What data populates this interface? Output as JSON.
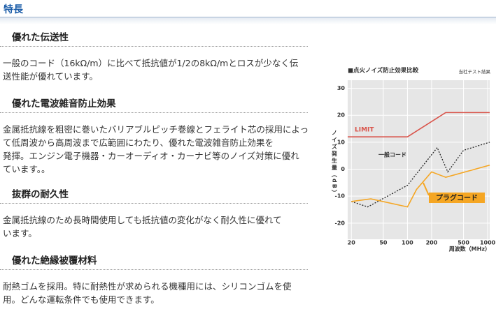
{
  "header": {
    "title": "特長"
  },
  "sections": [
    {
      "heading": "優れた伝送性",
      "lines": [
        "一般のコード（16kΩ/m）に比べて抵抗値が1/2の8kΩ/mとロスが少なく伝",
        "送性能が優れています。"
      ]
    },
    {
      "heading": "優れた電波雑音防止効果",
      "lines": [
        "金属抵抗線を粗密に巻いたバリアブルピッチ巻線とフェライト芯の採用によっ",
        "て低周波から高周波まで広範囲にわたり、優れた電波雑音防止効果を",
        "発揮。エンジン電子機器・カーオーディオ・カーナビ等のノイズ対策に優れ",
        "ています。。"
      ]
    },
    {
      "heading": "抜群の耐久性",
      "lines": [
        "金属抵抗線のため長時間使用しても抵抗値の変化がなく耐久性に優れて",
        "います。"
      ]
    },
    {
      "heading": "優れた絶縁被覆材料",
      "lines": [
        "耐熱ゴムを採用。特に耐熱性が求められる機種用には、シリコンゴムを使",
        "用。どんな運転条件でも使用できます。"
      ]
    }
  ],
  "chart_data": {
    "type": "line",
    "title": "■点火ノイズ防止効果比較",
    "note": "当社テスト結果",
    "ylabel": "ノイズ発生量（dB）",
    "xlabel": "周波数（MHz）",
    "xscale": "log",
    "grid": true,
    "xlim": [
      18,
      1060
    ],
    "xticks": [
      20,
      50,
      100,
      200,
      500,
      1000
    ],
    "ylim": [
      -26,
      33
    ],
    "yticks": [
      30,
      20,
      10,
      0,
      -10,
      -20
    ],
    "series": [
      {
        "name": "LIMIT",
        "color": "#d9534a",
        "x": [
          18,
          100,
          300,
          1060
        ],
        "values": [
          12,
          12,
          21,
          21
        ]
      },
      {
        "name": "一般コード",
        "color": "#222222",
        "dashed": true,
        "x": [
          20,
          32,
          100,
          235,
          318,
          500,
          1060
        ],
        "values": [
          -12,
          -14,
          -6,
          8,
          -1,
          7,
          10
        ]
      },
      {
        "name": "プラグコード",
        "color": "#f5a623",
        "x": [
          20,
          35,
          100,
          130,
          200,
          300,
          1060
        ],
        "values": [
          -12,
          -11,
          -14,
          -7.5,
          -1,
          -3,
          1.5
        ]
      }
    ]
  }
}
